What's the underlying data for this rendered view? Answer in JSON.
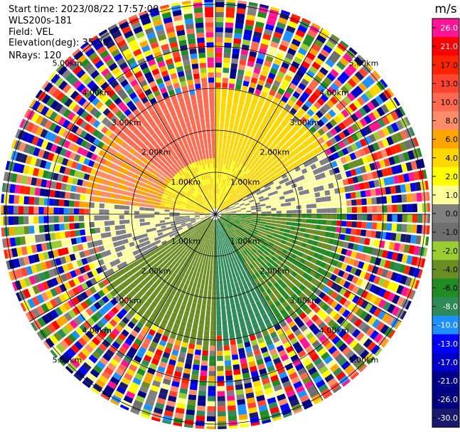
{
  "header": {
    "start_time": "Start time: 2023/08/22 17:57:00",
    "instrument": "WLS200s-181",
    "field": "Field: VEL",
    "elevation": "Elevation(deg): 35.30",
    "nrays": "NRays: 120"
  },
  "colorbar": {
    "unit": "m/s",
    "ticks": [
      "26.0",
      "21.0",
      "17.0",
      "13.0",
      "10.0",
      "8.0",
      "6.0",
      "4.0",
      "2.0",
      "1.0",
      "0.0",
      "-1.0",
      "-2.0",
      "-4.0",
      "-6.0",
      "-8.0",
      "-10.0",
      "-13.0",
      "-17.0",
      "-21.0",
      "-26.0",
      "-30.0"
    ],
    "colors": [
      "#ff1493",
      "#ff0000",
      "#ff2400",
      "#ff4530",
      "#ff6a50",
      "#ff8c69",
      "#ffa500",
      "#ffd700",
      "#ffff00",
      "#ffff99",
      "#808080",
      "#6e6e6e",
      "#9acd32",
      "#6b8e23",
      "#228b22",
      "#2e8b57",
      "#1e90ff",
      "#0000ff",
      "#0000cd",
      "#00008b",
      "#000080",
      "#191970"
    ]
  },
  "chart_data": {
    "type": "heatmap",
    "subtype": "ppi-polar",
    "field": "VEL",
    "units": "m/s",
    "nrays": 120,
    "range_rings_km": [
      1.0,
      2.0,
      3.0,
      4.0,
      5.0
    ],
    "ring_labels": [
      "1.00km",
      "2.00km",
      "3.00km",
      "4.00km",
      "5.00km"
    ],
    "valid_range_km": 3.2,
    "sectors": [
      {
        "az_from": 0,
        "az_to": 60,
        "value": 3.0
      },
      {
        "az_from": 60,
        "az_to": 90,
        "value": 0.0
      },
      {
        "az_from": 90,
        "az_to": 150,
        "value": -6.0
      },
      {
        "az_from": 150,
        "az_to": 180,
        "value": -9.0
      },
      {
        "az_from": 180,
        "az_to": 240,
        "value": -5.0
      },
      {
        "az_from": 240,
        "az_to": 275,
        "value": 0.0
      },
      {
        "az_from": 275,
        "az_to": 310,
        "value": 6.0
      },
      {
        "az_from": 310,
        "az_to": 360,
        "value": 9.0
      }
    ],
    "inner_sectors": [
      {
        "az_from": 280,
        "az_to": 360,
        "value": 2.0
      },
      {
        "az_from": 0,
        "az_to": 40,
        "value": 2.0
      }
    ]
  }
}
